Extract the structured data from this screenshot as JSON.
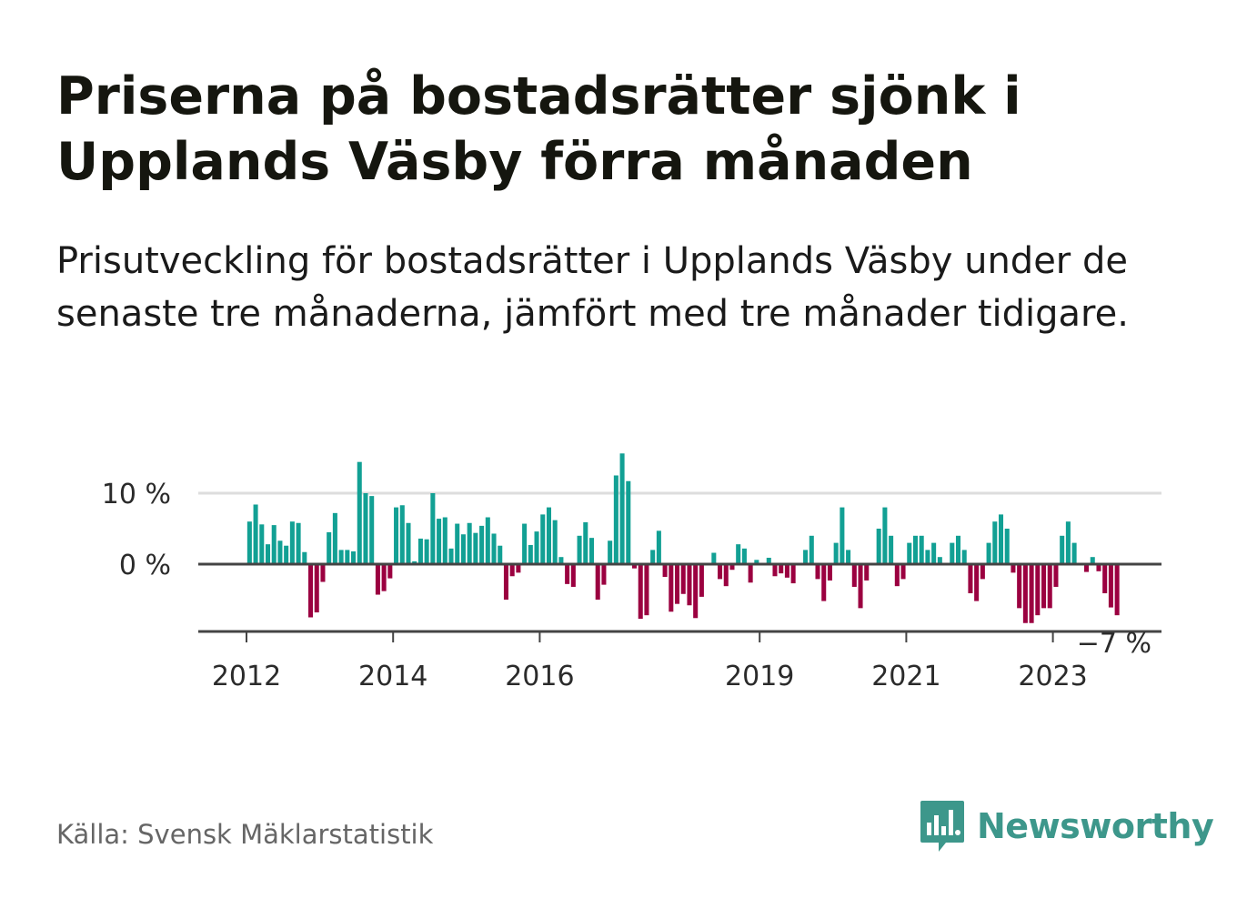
{
  "title": "Priserna på bostadsrätter sjönk i Upplands Väsby förra månaden",
  "subtitle": "Prisutveckling för bostadsrätter i Upplands Väsby under de senaste tre månaderna, jämfört med tre månader tidigare.",
  "source": "Källa: Svensk Mäklarstatistik",
  "brand": {
    "name": "Newsworthy",
    "color": "#3d978b"
  },
  "colors": {
    "positive": "#12a094",
    "negative": "#9b0040",
    "grid": "#dddddd",
    "axis": "#444444"
  },
  "chart_data": {
    "type": "bar",
    "title": "Priserna på bostadsrätter sjönk i Upplands Väsby förra månaden",
    "xlabel": "",
    "ylabel": "",
    "ylim": [
      -10,
      16
    ],
    "yticks": [
      {
        "value": 10,
        "label": "10 %"
      },
      {
        "value": 0,
        "label": "0 %"
      }
    ],
    "xticks": [
      {
        "year": 2012,
        "label": "2012"
      },
      {
        "year": 2014,
        "label": "2014"
      },
      {
        "year": 2016,
        "label": "2016"
      },
      {
        "year": 2019,
        "label": "2019"
      },
      {
        "year": 2021,
        "label": "2021"
      },
      {
        "year": 2023,
        "label": "2023"
      }
    ],
    "x_range": [
      2011.4,
      2024.5
    ],
    "start_month": "2012-01",
    "last_value_label": "−7 %",
    "values": [
      6,
      8.4,
      5.6,
      2.8,
      5.5,
      3.3,
      2.6,
      6,
      5.8,
      1.7,
      -7.5,
      -6.8,
      -2.5,
      4.5,
      7.2,
      2,
      2,
      1.8,
      14.4,
      10,
      9.6,
      -4.3,
      -3.8,
      -2,
      8,
      8.3,
      5.8,
      0.4,
      3.6,
      3.5,
      10,
      6.4,
      6.6,
      2.2,
      5.7,
      4.2,
      5.8,
      4.4,
      5.4,
      6.6,
      4.3,
      2.6,
      -5,
      -1.7,
      -1.2,
      5.7,
      2.7,
      4.6,
      7,
      8,
      6.2,
      1,
      -2.8,
      -3.2,
      4,
      5.9,
      3.7,
      -5,
      -2.9,
      3.3,
      12.5,
      15.6,
      11.7,
      -0.6,
      -7.7,
      -7.2,
      2,
      4.7,
      -1.8,
      -6.7,
      -5.6,
      -4.2,
      -5.8,
      -7.6,
      -4.6,
      0,
      1.6,
      -2.1,
      -3.1,
      -0.8,
      2.8,
      2.2,
      -2.6,
      0.6,
      0,
      0.9,
      -1.7,
      -1.3,
      -1.9,
      -2.7,
      0,
      2,
      4,
      -2.1,
      -5.2,
      -2.3,
      3,
      8,
      2,
      -3.2,
      -6.2,
      -2.3,
      0,
      5,
      8,
      4,
      -3.1,
      -2.1,
      3,
      4,
      4,
      2,
      3,
      1,
      0,
      3,
      4,
      2,
      -4.1,
      -5.2,
      -2.1,
      3,
      6,
      7,
      5,
      -1.2,
      -6.2,
      -8.3,
      -8.3,
      -7.2,
      -6.2,
      -6.2,
      -3.2,
      4,
      6,
      3,
      0,
      -1.1,
      1,
      -1,
      -4.1,
      -6.1,
      -7.2
    ]
  }
}
